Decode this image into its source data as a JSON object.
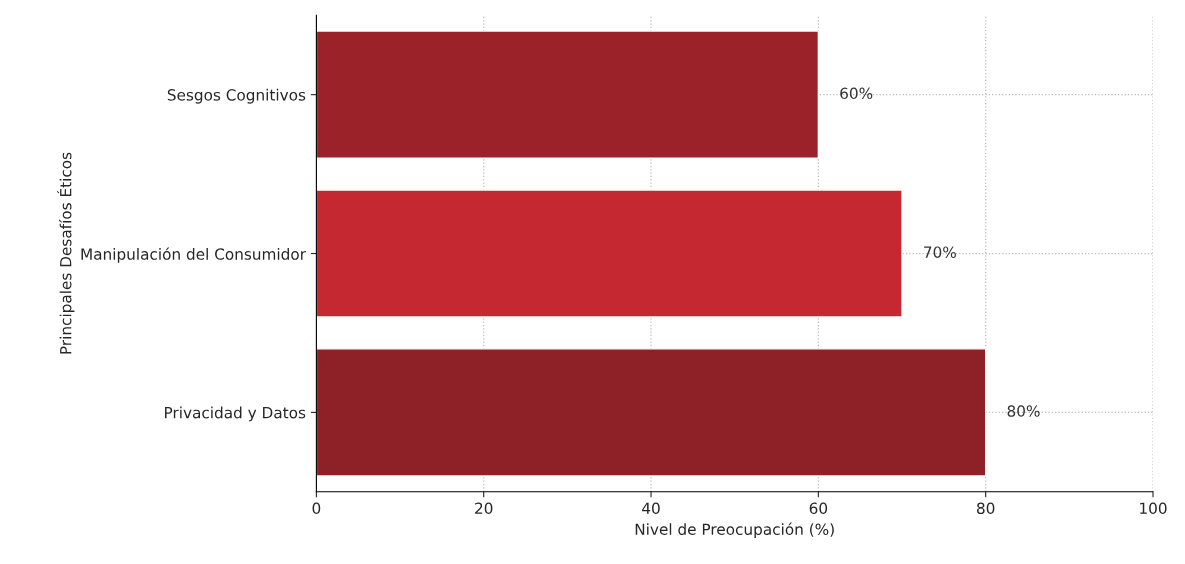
{
  "chart_data": {
    "type": "bar",
    "orientation": "horizontal",
    "xlabel": "Nivel de Preocupación (%)",
    "ylabel": "Principales Desafíos Éticos",
    "categories": [
      "Sesgos Cognitivos",
      "Manipulación del Consumidor",
      "Privacidad y Datos"
    ],
    "values": [
      60,
      70,
      80
    ],
    "colors": [
      "#9b2229",
      "#c62832",
      "#8e2028"
    ],
    "value_labels": [
      "60%",
      "70%",
      "80%"
    ],
    "xlim": [
      0,
      100
    ],
    "xticks": [
      0,
      20,
      40,
      60,
      80,
      100
    ],
    "grid": true
  }
}
